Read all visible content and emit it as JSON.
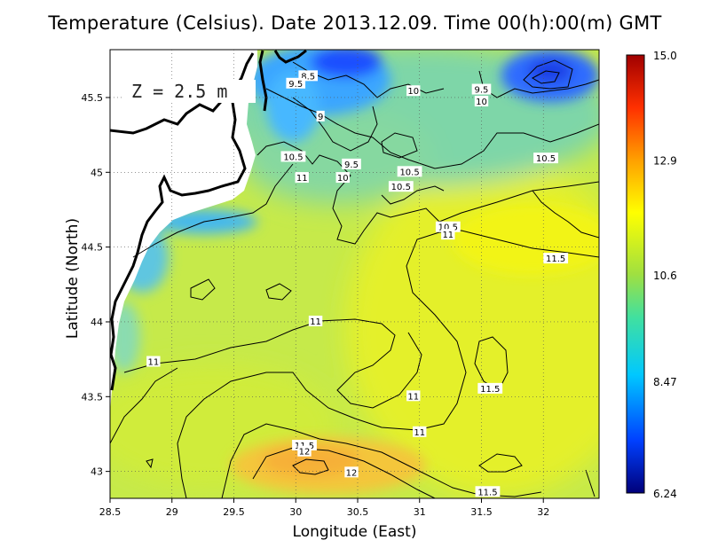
{
  "title": "Temperature (Celsius). Date 2013.12.09. Time 00(h):00(m)  GMT",
  "depth_label": "Z = 2.5 m",
  "x_axis": {
    "label": "Longitude (East)",
    "ticks": [
      "28.5",
      "29",
      "29.5",
      "30",
      "30.5",
      "31",
      "31.5",
      "32"
    ]
  },
  "y_axis": {
    "label": "Latitude (North)",
    "ticks": [
      "43",
      "43.5",
      "44",
      "44.5",
      "45",
      "45.5"
    ]
  },
  "colorbar": {
    "min": 6.24,
    "max": 15.0,
    "ticks": [
      "15.0",
      "12.9",
      "10.6",
      "8.47",
      "6.24"
    ],
    "colors": [
      "#00007a",
      "#0040ff",
      "#00c8ff",
      "#40e0a0",
      "#a0e040",
      "#ffff00",
      "#ffa000",
      "#ff3000",
      "#a00000"
    ]
  },
  "map": {
    "region_lon": [
      28.5,
      32.4
    ],
    "region_lat": [
      42.8,
      45.8
    ],
    "contour_labels": [
      {
        "text": "8.5",
        "lon": 30.1,
        "lat": 45.64
      },
      {
        "text": "9.5",
        "lon": 30.0,
        "lat": 45.59
      },
      {
        "text": "10",
        "lon": 30.95,
        "lat": 45.54
      },
      {
        "text": "9.5",
        "lon": 31.5,
        "lat": 45.55
      },
      {
        "text": "10",
        "lon": 31.5,
        "lat": 45.47
      },
      {
        "text": "9",
        "lon": 30.2,
        "lat": 45.37
      },
      {
        "text": "10.5",
        "lon": 29.98,
        "lat": 45.1
      },
      {
        "text": "9.5",
        "lon": 30.45,
        "lat": 45.05
      },
      {
        "text": "10.5",
        "lon": 32.02,
        "lat": 45.09
      },
      {
        "text": "10.5",
        "lon": 30.92,
        "lat": 45.0
      },
      {
        "text": "11",
        "lon": 30.05,
        "lat": 44.96
      },
      {
        "text": "10",
        "lon": 30.38,
        "lat": 44.96
      },
      {
        "text": "10.5",
        "lon": 30.85,
        "lat": 44.9
      },
      {
        "text": "10.5",
        "lon": 31.23,
        "lat": 44.63
      },
      {
        "text": "11",
        "lon": 31.23,
        "lat": 44.58
      },
      {
        "text": "11.5",
        "lon": 32.1,
        "lat": 44.42
      },
      {
        "text": "11",
        "lon": 30.16,
        "lat": 44.0
      },
      {
        "text": "11",
        "lon": 28.85,
        "lat": 43.73
      },
      {
        "text": "11.5",
        "lon": 31.57,
        "lat": 43.55
      },
      {
        "text": "11",
        "lon": 30.95,
        "lat": 43.5
      },
      {
        "text": "11",
        "lon": 31.0,
        "lat": 43.26
      },
      {
        "text": "11.5",
        "lon": 30.07,
        "lat": 43.17
      },
      {
        "text": "12",
        "lon": 30.07,
        "lat": 43.13
      },
      {
        "text": "12",
        "lon": 30.45,
        "lat": 42.99
      },
      {
        "text": "11.5",
        "lon": 31.55,
        "lat": 42.86
      }
    ]
  }
}
